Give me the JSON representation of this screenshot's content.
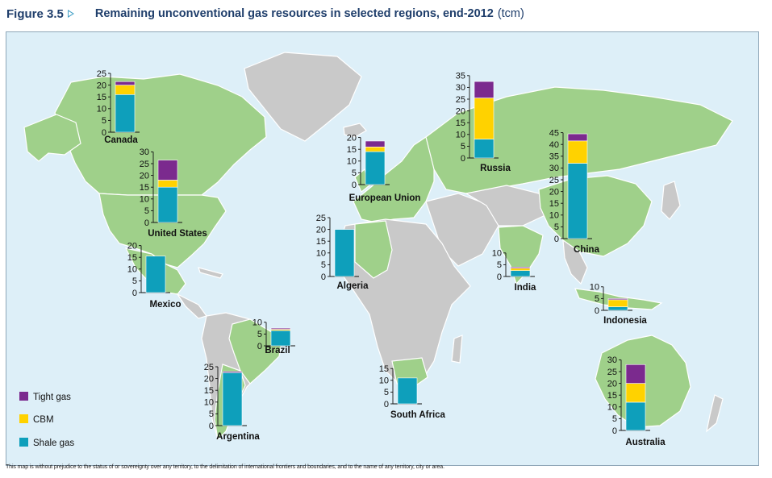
{
  "header": {
    "figure_label": "Figure 3.5",
    "title": "Remaining unconventional gas resources in selected regions, end-2012",
    "unit": "(tcm)"
  },
  "footnote": "This map is without prejudice to the status of or sovereignty over any territory, to the delimitation of international frontiers and boundaries, and to the name of any territory, city or area.",
  "colors": {
    "tight": "#7b2a8e",
    "cbm": "#ffd200",
    "shale": "#0e9fbb",
    "land": "#9fd08a",
    "other_land": "#c9c9c9",
    "sea": "#ddeff8"
  },
  "legend": [
    {
      "key": "tight",
      "label": "Tight gas"
    },
    {
      "key": "cbm",
      "label": "CBM"
    },
    {
      "key": "shale",
      "label": "Shale gas"
    }
  ],
  "chart_data": {
    "type": "bar",
    "stacked": true,
    "series_order": [
      "shale",
      "cbm",
      "tight"
    ],
    "regions": [
      {
        "name": "Canada",
        "ticks": [
          0,
          5,
          10,
          15,
          20,
          25
        ],
        "max": 25,
        "shale": 16,
        "cbm": 4,
        "tight": 1.5
      },
      {
        "name": "United States",
        "ticks": [
          0,
          5,
          10,
          15,
          20,
          25,
          30
        ],
        "max": 30,
        "shale": 15,
        "cbm": 3,
        "tight": 8.5
      },
      {
        "name": "Mexico",
        "ticks": [
          0,
          5,
          10,
          15,
          20
        ],
        "max": 20,
        "shale": 15.5,
        "cbm": 0,
        "tight": 0
      },
      {
        "name": "Brazil",
        "ticks": [
          0,
          5,
          10
        ],
        "max": 10,
        "shale": 6.5,
        "cbm": 0.5,
        "tight": 0.5
      },
      {
        "name": "Argentina",
        "ticks": [
          0,
          5,
          10,
          15,
          20,
          25
        ],
        "max": 25,
        "shale": 22.5,
        "cbm": 0,
        "tight": 0.5
      },
      {
        "name": "European Union",
        "ticks": [
          0,
          5,
          10,
          15,
          20
        ],
        "max": 20,
        "shale": 14,
        "cbm": 2,
        "tight": 2.5
      },
      {
        "name": "Algeria",
        "ticks": [
          0,
          5,
          10,
          15,
          20,
          25
        ],
        "max": 25,
        "shale": 20,
        "cbm": 0,
        "tight": 0
      },
      {
        "name": "South Africa",
        "ticks": [
          0,
          5,
          10,
          15
        ],
        "max": 15,
        "shale": 11,
        "cbm": 0,
        "tight": 0
      },
      {
        "name": "Russia",
        "ticks": [
          0,
          5,
          10,
          15,
          20,
          25,
          30,
          35
        ],
        "max": 35,
        "shale": 8,
        "cbm": 17.5,
        "tight": 7
      },
      {
        "name": "China",
        "ticks": [
          0,
          5,
          10,
          15,
          20,
          25,
          30,
          35,
          40,
          45
        ],
        "max": 45,
        "shale": 32,
        "cbm": 9.5,
        "tight": 3
      },
      {
        "name": "India",
        "ticks": [
          0,
          5,
          10
        ],
        "max": 10,
        "shale": 2.5,
        "cbm": 1,
        "tight": 0.5
      },
      {
        "name": "Indonesia",
        "ticks": [
          0,
          5,
          10
        ],
        "max": 10,
        "shale": 1.5,
        "cbm": 3,
        "tight": 0.5
      },
      {
        "name": "Australia",
        "ticks": [
          0,
          5,
          10,
          15,
          20,
          25,
          30
        ],
        "max": 30,
        "shale": 12,
        "cbm": 8,
        "tight": 8
      }
    ]
  }
}
